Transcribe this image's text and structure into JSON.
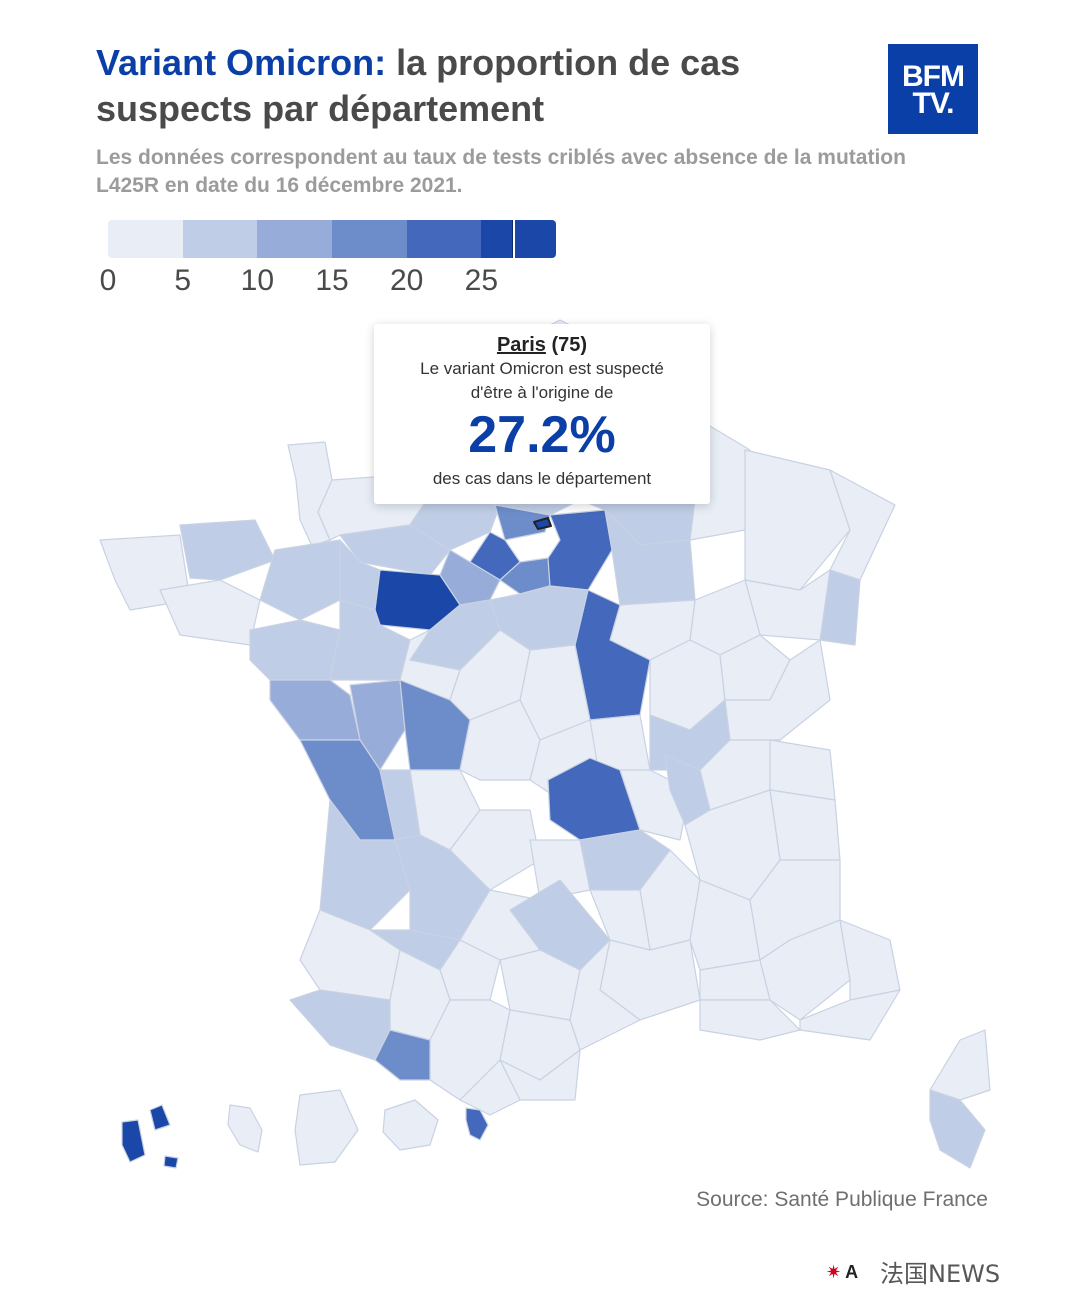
{
  "title": {
    "accent": "Variant Omicron:",
    "rest": "la proportion de cas suspects par département"
  },
  "logo": {
    "line1": "BFM",
    "line2": "TV."
  },
  "subtitle": "Les données correspondent au taux de tests criblés avec absence de la mutation L425R en date du 16 décembre 2021.",
  "legend": {
    "ticks": [
      "0",
      "5",
      "10",
      "15",
      "20",
      "25"
    ],
    "colors": [
      "#e8edf6",
      "#c0cde6",
      "#97acd8",
      "#6d8cca",
      "#4468bb",
      "#1b48a8"
    ],
    "marker_value": 27.2,
    "max": 30
  },
  "tooltip": {
    "name": "Paris",
    "code": "(75)",
    "line1": "Le variant Omicron est suspecté",
    "line2": "d'être à l'origine de",
    "value": "27.2%",
    "foot": "des cas dans le département"
  },
  "colors": {
    "accent": "#0b3fa8",
    "c0": "#e8edf6",
    "c1": "#c0cde6",
    "c2": "#97acd8",
    "c3": "#6d8cca",
    "c4": "#4468bb",
    "c5": "#1b48a8"
  },
  "source": "Source: Santé Publique France",
  "footer": {
    "a": "A",
    "watermark": "法国NEWS"
  }
}
